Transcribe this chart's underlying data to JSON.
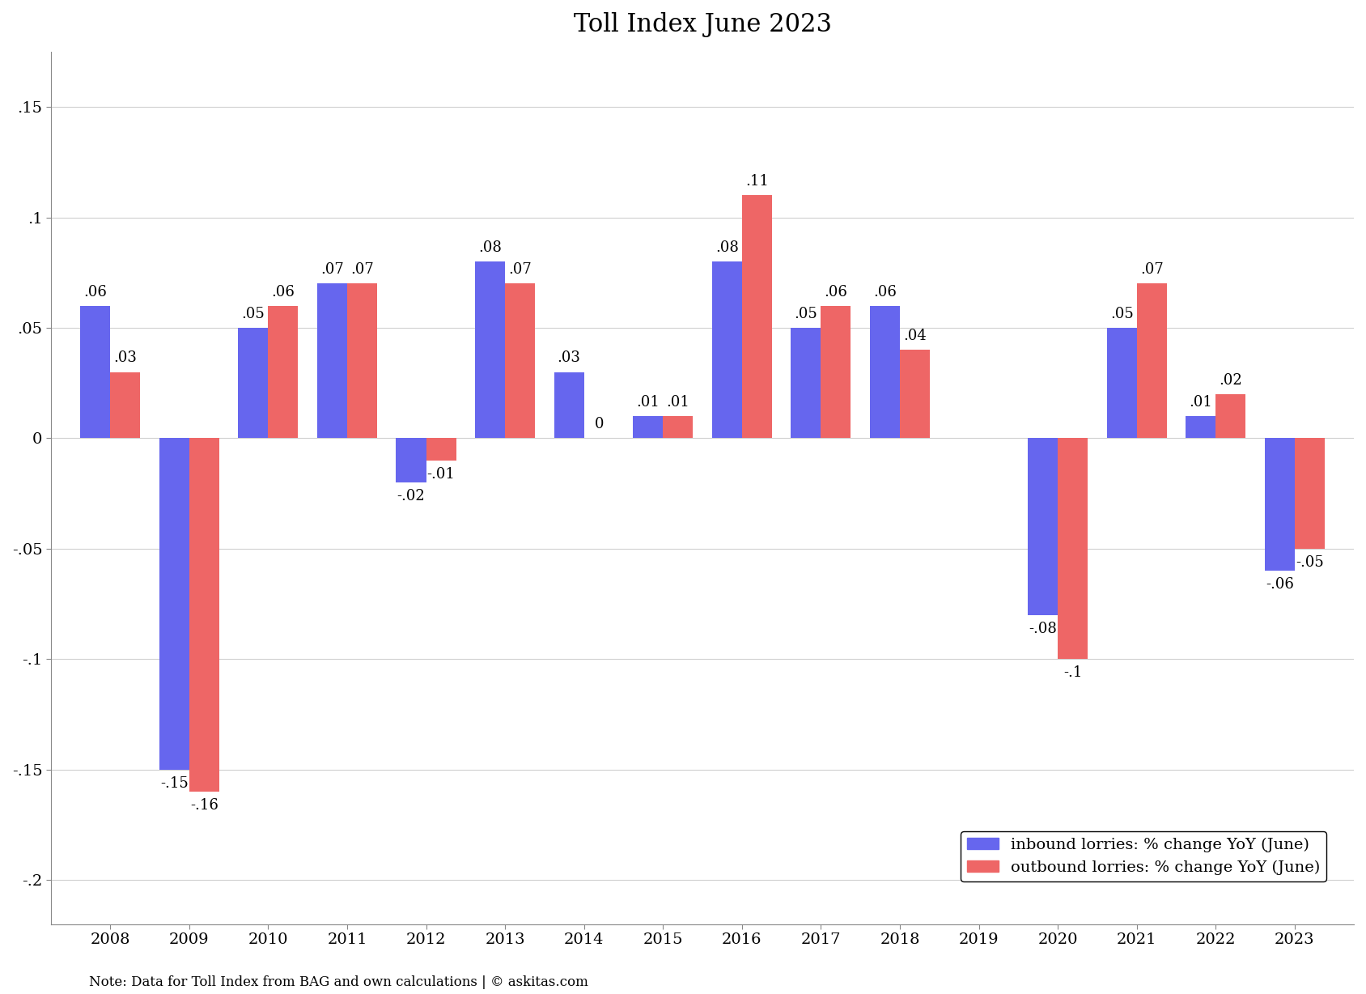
{
  "title": "Toll Index June 2023",
  "years": [
    2008,
    2009,
    2010,
    2011,
    2012,
    2013,
    2014,
    2015,
    2016,
    2017,
    2018,
    2019,
    2020,
    2021,
    2022,
    2023
  ],
  "inbound": [
    0.06,
    -0.15,
    0.05,
    0.07,
    -0.02,
    0.08,
    0.03,
    0.01,
    0.08,
    0.05,
    0.06,
    0.0,
    -0.08,
    0.05,
    0.01,
    -0.06
  ],
  "outbound": [
    0.03,
    -0.16,
    0.06,
    0.07,
    -0.01,
    0.07,
    0.0,
    0.01,
    0.11,
    0.06,
    0.04,
    0.0,
    -0.1,
    0.07,
    0.02,
    -0.05
  ],
  "inbound_labels": [
    ".06",
    "-.15",
    ".05",
    ".07",
    "-.02",
    ".08",
    ".03",
    ".01",
    ".08",
    ".05",
    ".06",
    "",
    "-.08",
    ".05",
    ".01",
    "-.06"
  ],
  "outbound_labels": [
    ".03",
    "-.16",
    ".06",
    ".07",
    "-.01",
    ".07",
    "0",
    ".01",
    ".11",
    ".06",
    ".04",
    "",
    "-.1",
    ".07",
    ".02",
    "-.05"
  ],
  "inbound_color": "#6666ee",
  "outbound_color": "#ee6666",
  "ylim": [
    -0.22,
    0.175
  ],
  "yticks": [
    -0.2,
    -0.15,
    -0.1,
    -0.05,
    0.0,
    0.05,
    0.1,
    0.15
  ],
  "ytick_labels": [
    "-.2",
    "-.15",
    "-.1",
    "-.05",
    "0",
    ".05",
    ".1",
    ".15"
  ],
  "bar_width": 0.38,
  "legend_labels": [
    "inbound lorries: % change YoY (June)",
    "outbound lorries: % change YoY (June)"
  ],
  "footnote": "Note: Data for Toll Index from BAG and own calculations | © askitas.com",
  "background_color": "#ffffff",
  "grid_color": "#d0d0d0"
}
